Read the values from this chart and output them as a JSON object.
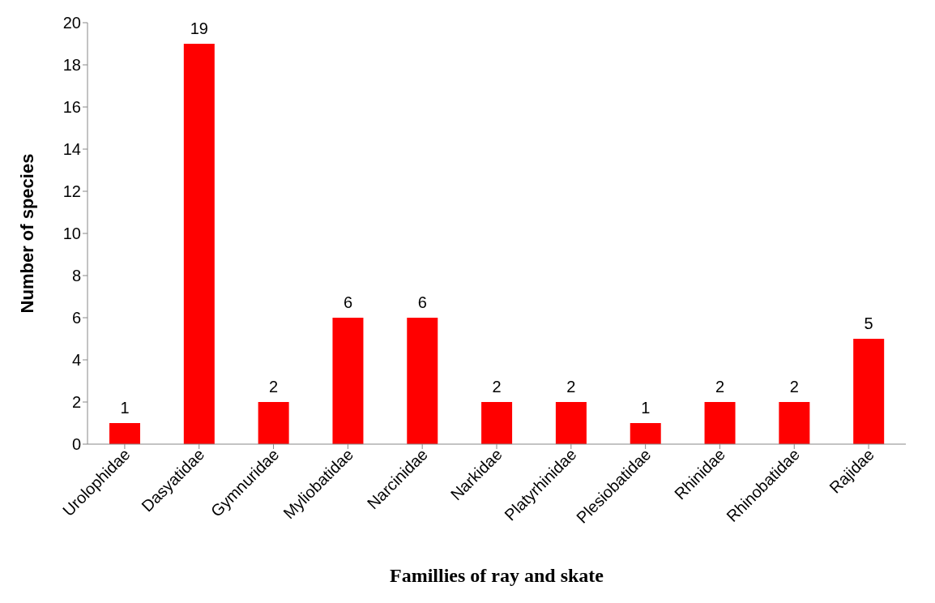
{
  "chart_data": {
    "type": "bar",
    "xlabel": "Famillies of ray and skate",
    "ylabel": "Number of species",
    "categories": [
      "Urolophidae",
      "Dasyatidae",
      "Gymnuridae",
      "Myliobatidae",
      "Narcinidae",
      "Narkidae",
      "Platyrhinidae",
      "Plesiobatidae",
      "Rhinidae",
      "Rhinobatidae",
      "Rajidae"
    ],
    "values": [
      1,
      19,
      2,
      6,
      6,
      2,
      2,
      1,
      2,
      2,
      5
    ],
    "color": "#ff0000",
    "ylim": [
      0,
      20
    ],
    "yticks": [
      0,
      2,
      4,
      6,
      8,
      10,
      12,
      14,
      16,
      18,
      20
    ],
    "data_labels": true,
    "grid": false
  }
}
